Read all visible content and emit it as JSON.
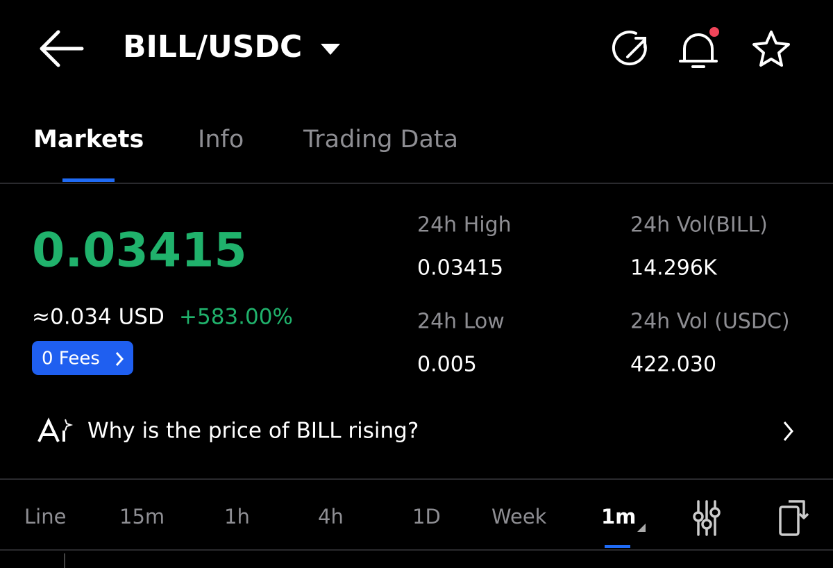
{
  "header": {
    "pair": "BILL/USDC"
  },
  "tabs": [
    "Markets",
    "Info",
    "Trading Data"
  ],
  "price": {
    "last": "0.03415",
    "usd": "≈0.034 USD",
    "change": "+583.00%",
    "fees": "0 Fees"
  },
  "stats": [
    {
      "label": "24h High",
      "value": "0.03415"
    },
    {
      "label": "24h Vol(BILL)",
      "value": "14.296K"
    },
    {
      "label": "24h Low",
      "value": "0.005"
    },
    {
      "label": "24h Vol (USDC)",
      "value": "422.030"
    }
  ],
  "banner": {
    "text": "Why is the price of BILL rising?"
  },
  "intervals": [
    "Line",
    "15m",
    "1h",
    "4h",
    "1D",
    "Week",
    "1m"
  ]
}
